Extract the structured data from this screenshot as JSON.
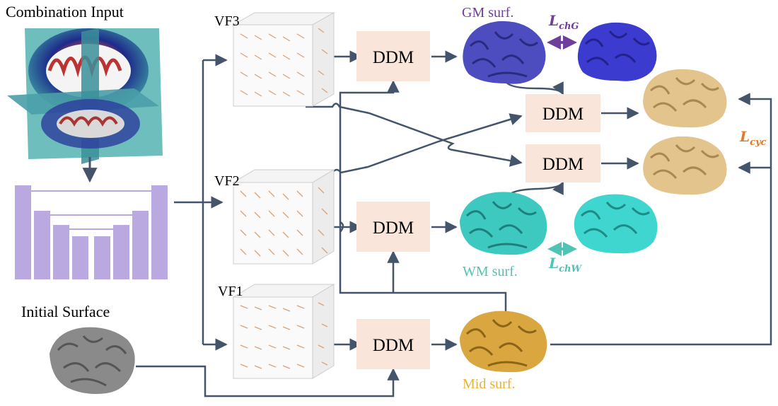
{
  "input": {
    "title": "Combination Input",
    "initial_surface": "Initial Surface"
  },
  "vector_fields": [
    {
      "id": "vf3",
      "label": "VF3"
    },
    {
      "id": "vf2",
      "label": "VF2"
    },
    {
      "id": "vf1",
      "label": "VF1"
    }
  ],
  "ddm_label": "DDM",
  "surfaces": {
    "gm": "GM surf.",
    "wm": "WM surf.",
    "mid": "Mid surf."
  },
  "losses": {
    "chamfer_gm": {
      "main": "L",
      "sub": "chG"
    },
    "chamfer_wm": {
      "main": "L",
      "sub": "chW"
    },
    "cycle": {
      "main": "L",
      "sub": "cyc"
    }
  },
  "colors": {
    "arrow": "#44546a",
    "ddm_fill": "#f9e5d9",
    "unet": "#b9a9e0",
    "gm_text": "#6f3d9c",
    "gm_surface": "#4d4dc0",
    "wm_text": "#4fc4b6",
    "wm_surface": "#3dc9c0",
    "mid_text": "#e8b23a",
    "mid_surface": "#d9a640",
    "cyc_text": "#e07b2a",
    "cyc_surface": "#e2c48c",
    "initial_surface": "#8a8a8a"
  }
}
